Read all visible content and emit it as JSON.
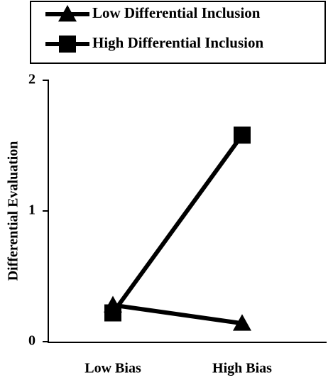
{
  "chart_data": {
    "type": "line",
    "y_label": "Differential Evaluation",
    "categories": [
      "Low Bias",
      "High Bias"
    ],
    "series": [
      {
        "name": "Low Differential Inclusion",
        "color": "#000000",
        "marker": "triangle",
        "values": [
          0.28,
          0.14
        ]
      },
      {
        "name": "High Differential Inclusion",
        "color": "#000000",
        "marker": "square",
        "values": [
          0.22,
          1.58
        ]
      }
    ],
    "ylim": [
      0,
      2
    ],
    "yticks": [
      0,
      1,
      2
    ],
    "grid": false,
    "legend": "top"
  }
}
